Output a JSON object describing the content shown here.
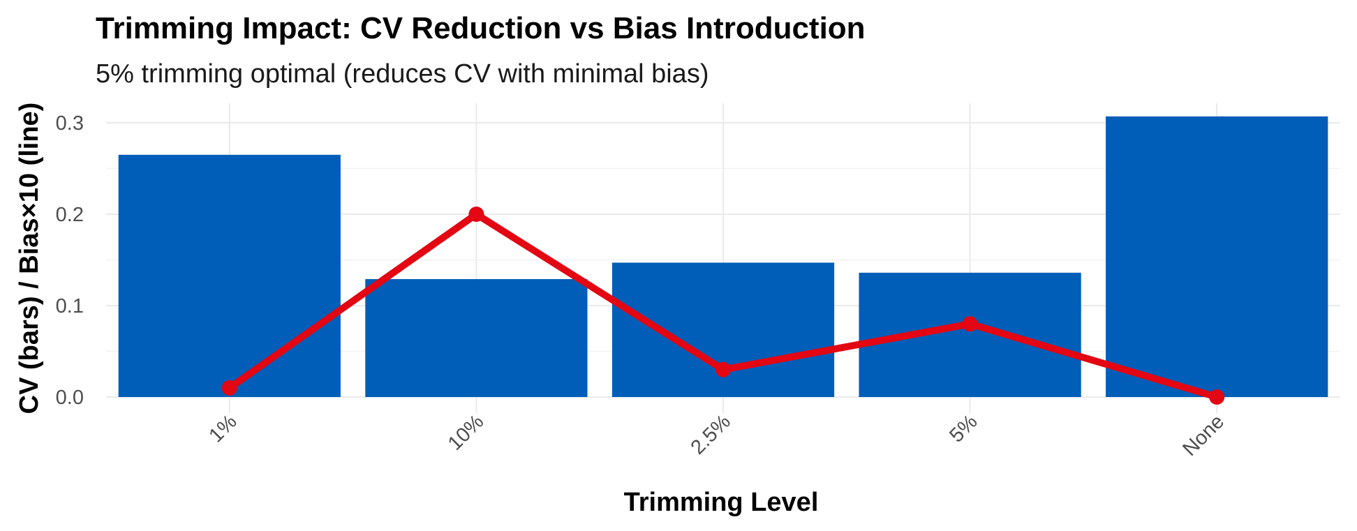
{
  "chart_data": {
    "type": "bar",
    "title": "Trimming Impact: CV Reduction vs Bias Introduction",
    "subtitle": "5% trimming optimal (reduces CV with minimal bias)",
    "xlabel": "Trimming Level",
    "ylabel": "CV (bars) / Bias×10 (line)",
    "categories": [
      "1%",
      "10%",
      "2.5%",
      "5%",
      "None"
    ],
    "ylim": [
      -0.02,
      0.32
    ],
    "yticks": [
      0.0,
      0.1,
      0.2,
      0.3
    ],
    "ytick_labels": [
      "0.0",
      "0.1",
      "0.2",
      "0.3"
    ],
    "grid": true,
    "legend": "none",
    "series": [
      {
        "type": "bar",
        "values": [
          0.265,
          0.129,
          0.147,
          0.136,
          0.307
        ],
        "color": "#005eb8"
      },
      {
        "type": "line",
        "values": [
          0.01,
          0.2,
          0.03,
          0.08,
          0.0
        ],
        "color": "#e30613"
      }
    ]
  }
}
